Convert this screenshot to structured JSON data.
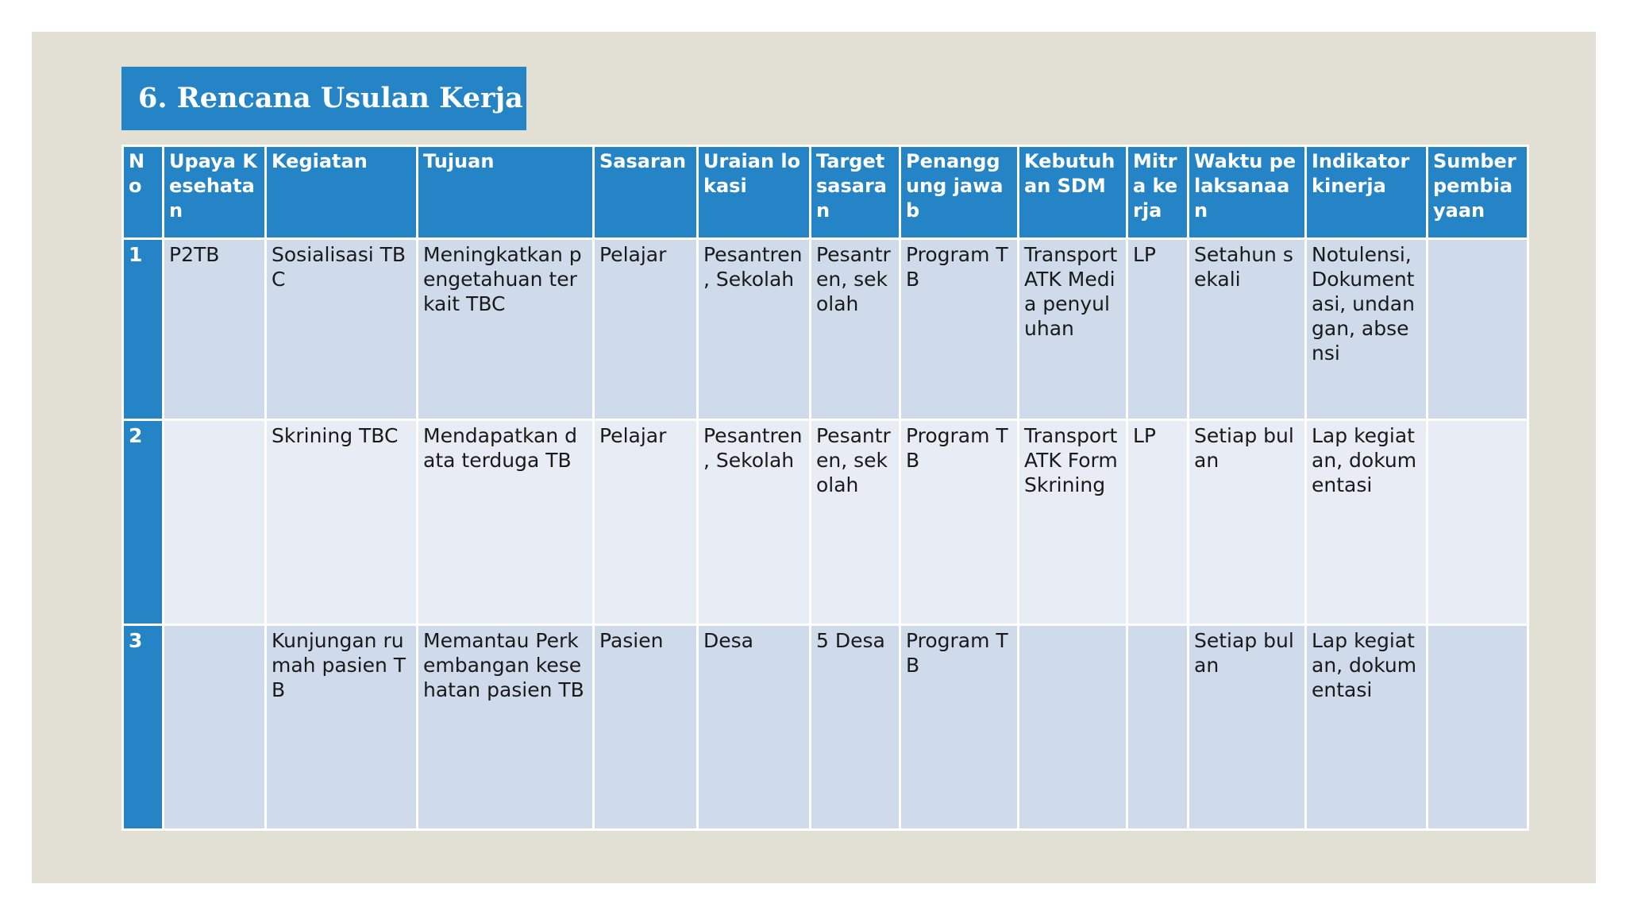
{
  "slide": {
    "title": "6. Rencana Usulan Kerja"
  },
  "table": {
    "headers": [
      "No",
      "Upaya Kesehatan",
      "Kegiatan",
      "Tujuan",
      "Sasaran",
      "Uraian lokasi",
      "Target sasaran",
      "Penanggung jawab",
      "Kebutuhan SDM",
      "Mitra kerja",
      "Waktu pelaksanaan",
      "Indikator kinerja",
      "Sumber pembiayaan"
    ],
    "rows": [
      [
        "1",
        "P2TB",
        "Sosialisasi TBC",
        "Meningkatkan pengetahuan terkait TBC",
        "Pelajar",
        "Pesantren , Sekolah",
        "Pesantren, sekolah",
        "Program TB",
        "Transport ATK Media penyuluhan",
        "LP",
        "Setahun sekali",
        "Notulensi, Dokumentasi, undangan, absensi",
        ""
      ],
      [
        "2",
        "",
        "Skrining TBC",
        "Mendapatkan data terduga TB",
        "Pelajar",
        "Pesantren , Sekolah",
        "Pesantren, sekolah",
        "Program TB",
        "Transport ATK Form Skrining",
        "LP",
        "Setiap bulan",
        "Lap kegiatan, dokumentasi",
        ""
      ],
      [
        "3",
        "",
        "Kunjungan rumah pasien TB",
        "Memantau Perkembangan kesehatan pasien TB",
        "Pasien",
        " Desa",
        " 5 Desa",
        "Program TB",
        "",
        "",
        "Setiap bulan",
        "Lap kegiatan, dokumentasi",
        ""
      ]
    ]
  }
}
